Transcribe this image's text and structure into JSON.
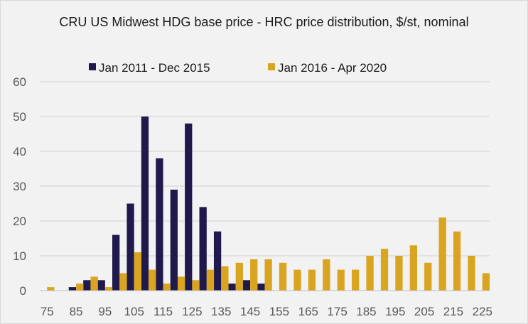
{
  "chart_data": {
    "type": "bar",
    "title": "CRU US Midwest HDG base price - HRC price distribution, $/st, nominal",
    "xlabel": "",
    "ylabel": "",
    "ylim": [
      0,
      60
    ],
    "yticks": [
      0,
      10,
      20,
      30,
      40,
      50,
      60
    ],
    "grid": true,
    "legend": "top-center",
    "categories": [
      75,
      80,
      85,
      90,
      95,
      100,
      105,
      110,
      115,
      120,
      125,
      130,
      135,
      140,
      145,
      150,
      155,
      160,
      165,
      170,
      175,
      180,
      185,
      190,
      195,
      200,
      205,
      210,
      215,
      220,
      225
    ],
    "tick_labels": [
      "75",
      "85",
      "95",
      "105",
      "115",
      "125",
      "135",
      "145",
      "155",
      "165",
      "175",
      "185",
      "195",
      "205",
      "215",
      "225"
    ],
    "series": [
      {
        "name": "Jan 2011 - Dec 2015",
        "color": "#1f1a4b",
        "values": [
          0,
          0,
          1,
          3,
          3,
          16,
          25,
          50,
          38,
          29,
          48,
          24,
          17,
          2,
          3,
          2,
          0,
          0,
          0,
          0,
          0,
          0,
          0,
          0,
          0,
          0,
          0,
          0,
          0,
          0,
          0
        ]
      },
      {
        "name": "Jan 2016 - Apr 2020",
        "color": "#d9a521",
        "values": [
          1,
          0,
          2,
          4,
          1,
          5,
          11,
          6,
          2,
          4,
          3,
          6,
          7,
          8,
          9,
          9,
          8,
          6,
          6,
          9,
          6,
          6,
          10,
          12,
          10,
          13,
          8,
          21,
          17,
          10,
          5
        ]
      }
    ]
  }
}
